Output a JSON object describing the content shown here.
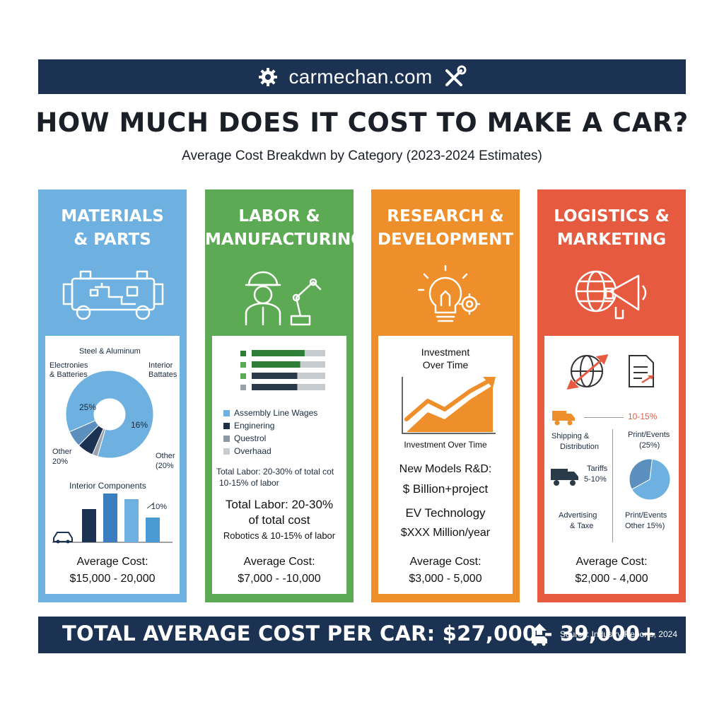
{
  "header": {
    "site": "carmechan.com",
    "left_icon": "gear-icon",
    "right_icon": "wrench-screwdriver-icon"
  },
  "title": "HOW MUCH DOES IT COST TO MAKE A CAR?",
  "subtitle": "Average Cost Breakdwn by Category (2023-2024 Estimates)",
  "colors": {
    "navy": "#1c3252",
    "blue": "#6eb1e0",
    "green": "#5daa55",
    "orange": "#ee8f2c",
    "red": "#e65a40"
  },
  "panels": {
    "materials": {
      "title_1": "MATERIALS",
      "title_2": "& PARTS",
      "icon": "car-chassis-icon",
      "donut": {
        "top_label": "Steel & Aluminum",
        "left_label_1": "Electronies",
        "left_label_2": "& Batteries",
        "right_label_1": "Interior",
        "right_label_2": "Battates",
        "pct_left": "25%",
        "pct_right": "16%",
        "other_left_1": "Other",
        "other_left_2": "20%",
        "other_right_1": "Other",
        "other_right_2": "(20%",
        "segments": [
          {
            "share": 0.86,
            "color": "#6eb1e0"
          },
          {
            "share": 0.02,
            "color": "#9aa3ad"
          },
          {
            "share": 0.06,
            "color": "#1c3252"
          },
          {
            "share": 0.06,
            "color": "#5b8fbd"
          }
        ]
      },
      "bars": {
        "title": "Interior Components",
        "pct_label": "10%",
        "car_icon": "car-icon",
        "values": [
          {
            "v": 47,
            "color": "#1c3252"
          },
          {
            "v": 69,
            "color": "#3a7ec0"
          },
          {
            "v": 61,
            "color": "#6eb1e0"
          },
          {
            "v": 35,
            "color": "#4a9ad6"
          }
        ]
      },
      "avg_label": "Average Cost:",
      "avg_value": "$15,000 - 20,000"
    },
    "labor": {
      "title_1": "LABOR &",
      "title_2": "MANUFACTURING",
      "icon": "worker-robot-arm-icon",
      "bars": [
        {
          "fill": 0.72,
          "sq": "#2e7d36",
          "bar": "#2e7d36"
        },
        {
          "fill": 0.66,
          "sq": "#5daa55",
          "bar": "#2e7d36"
        },
        {
          "fill": 0.62,
          "sq": "#5daa55",
          "bar": "#2a3a48"
        },
        {
          "fill": 0.62,
          "sq": "#9aa3ad",
          "bar": "#2a3a48"
        }
      ],
      "legend": [
        {
          "text": "Assembly Line Wages",
          "color": "#6eb1e0"
        },
        {
          "text": "Enginering",
          "color": "#1c2f45"
        },
        {
          "text": "Questrol",
          "color": "#8c98a4"
        },
        {
          "text": "Overhaad",
          "color": "#c7ccd1"
        }
      ],
      "note_1": "Total Labor: 20-30% of total cot",
      "note_2": "10-15% of labor",
      "big_1": "Total Labor: 20-30%",
      "big_2": "of total cost",
      "small": "Robotics & 10-15% of labor",
      "avg_label": "Average Cost:",
      "avg_value": "$7,000 - -10,000"
    },
    "rnd": {
      "title_1": "RESEARCH &",
      "title_2": "DEVELOPMENT",
      "icon": "lightbulb-gear-icon",
      "chart_title_1": "Investment",
      "chart_title_2": "Over Time",
      "chart_caption": "Investment Over Time",
      "line_1": "New Models R&D:",
      "line_2": "$ Billion+project",
      "line_3": "EV Technology",
      "line_4": "$XXX Million/year",
      "avg_label": "Average Cost:",
      "avg_value": "$3,000 - 5,000"
    },
    "logistics": {
      "title_1": "LOGISTICS &",
      "title_2": "MARKETING",
      "icon": "globe-megaphone-icon",
      "shipping_1": "Shipping &",
      "shipping_2": "Distribution",
      "range": "10-15%",
      "print_1": "Print/Events",
      "print_2": "(25%)",
      "tariffs_1": "Tariffs",
      "tariffs_2": "5-10%",
      "adv_1": "Advertising",
      "adv_2": "& Taxe",
      "print_b_1": "Print/Events",
      "print_b_2": "Other  15%)",
      "pie": [
        {
          "share": 0.65,
          "color": "#6eb1e0"
        },
        {
          "share": 0.35,
          "color": "#5b8fbd"
        }
      ],
      "avg_label": "Average Cost:",
      "avg_value": "$2,000 - 4,000"
    }
  },
  "footer": {
    "total": "TOTAL AVERAGE COST PER CAR: $27,000 - 39,000+",
    "source": "Source: Industry Reports, 2024",
    "icon": "car-up-arrow-icon"
  }
}
